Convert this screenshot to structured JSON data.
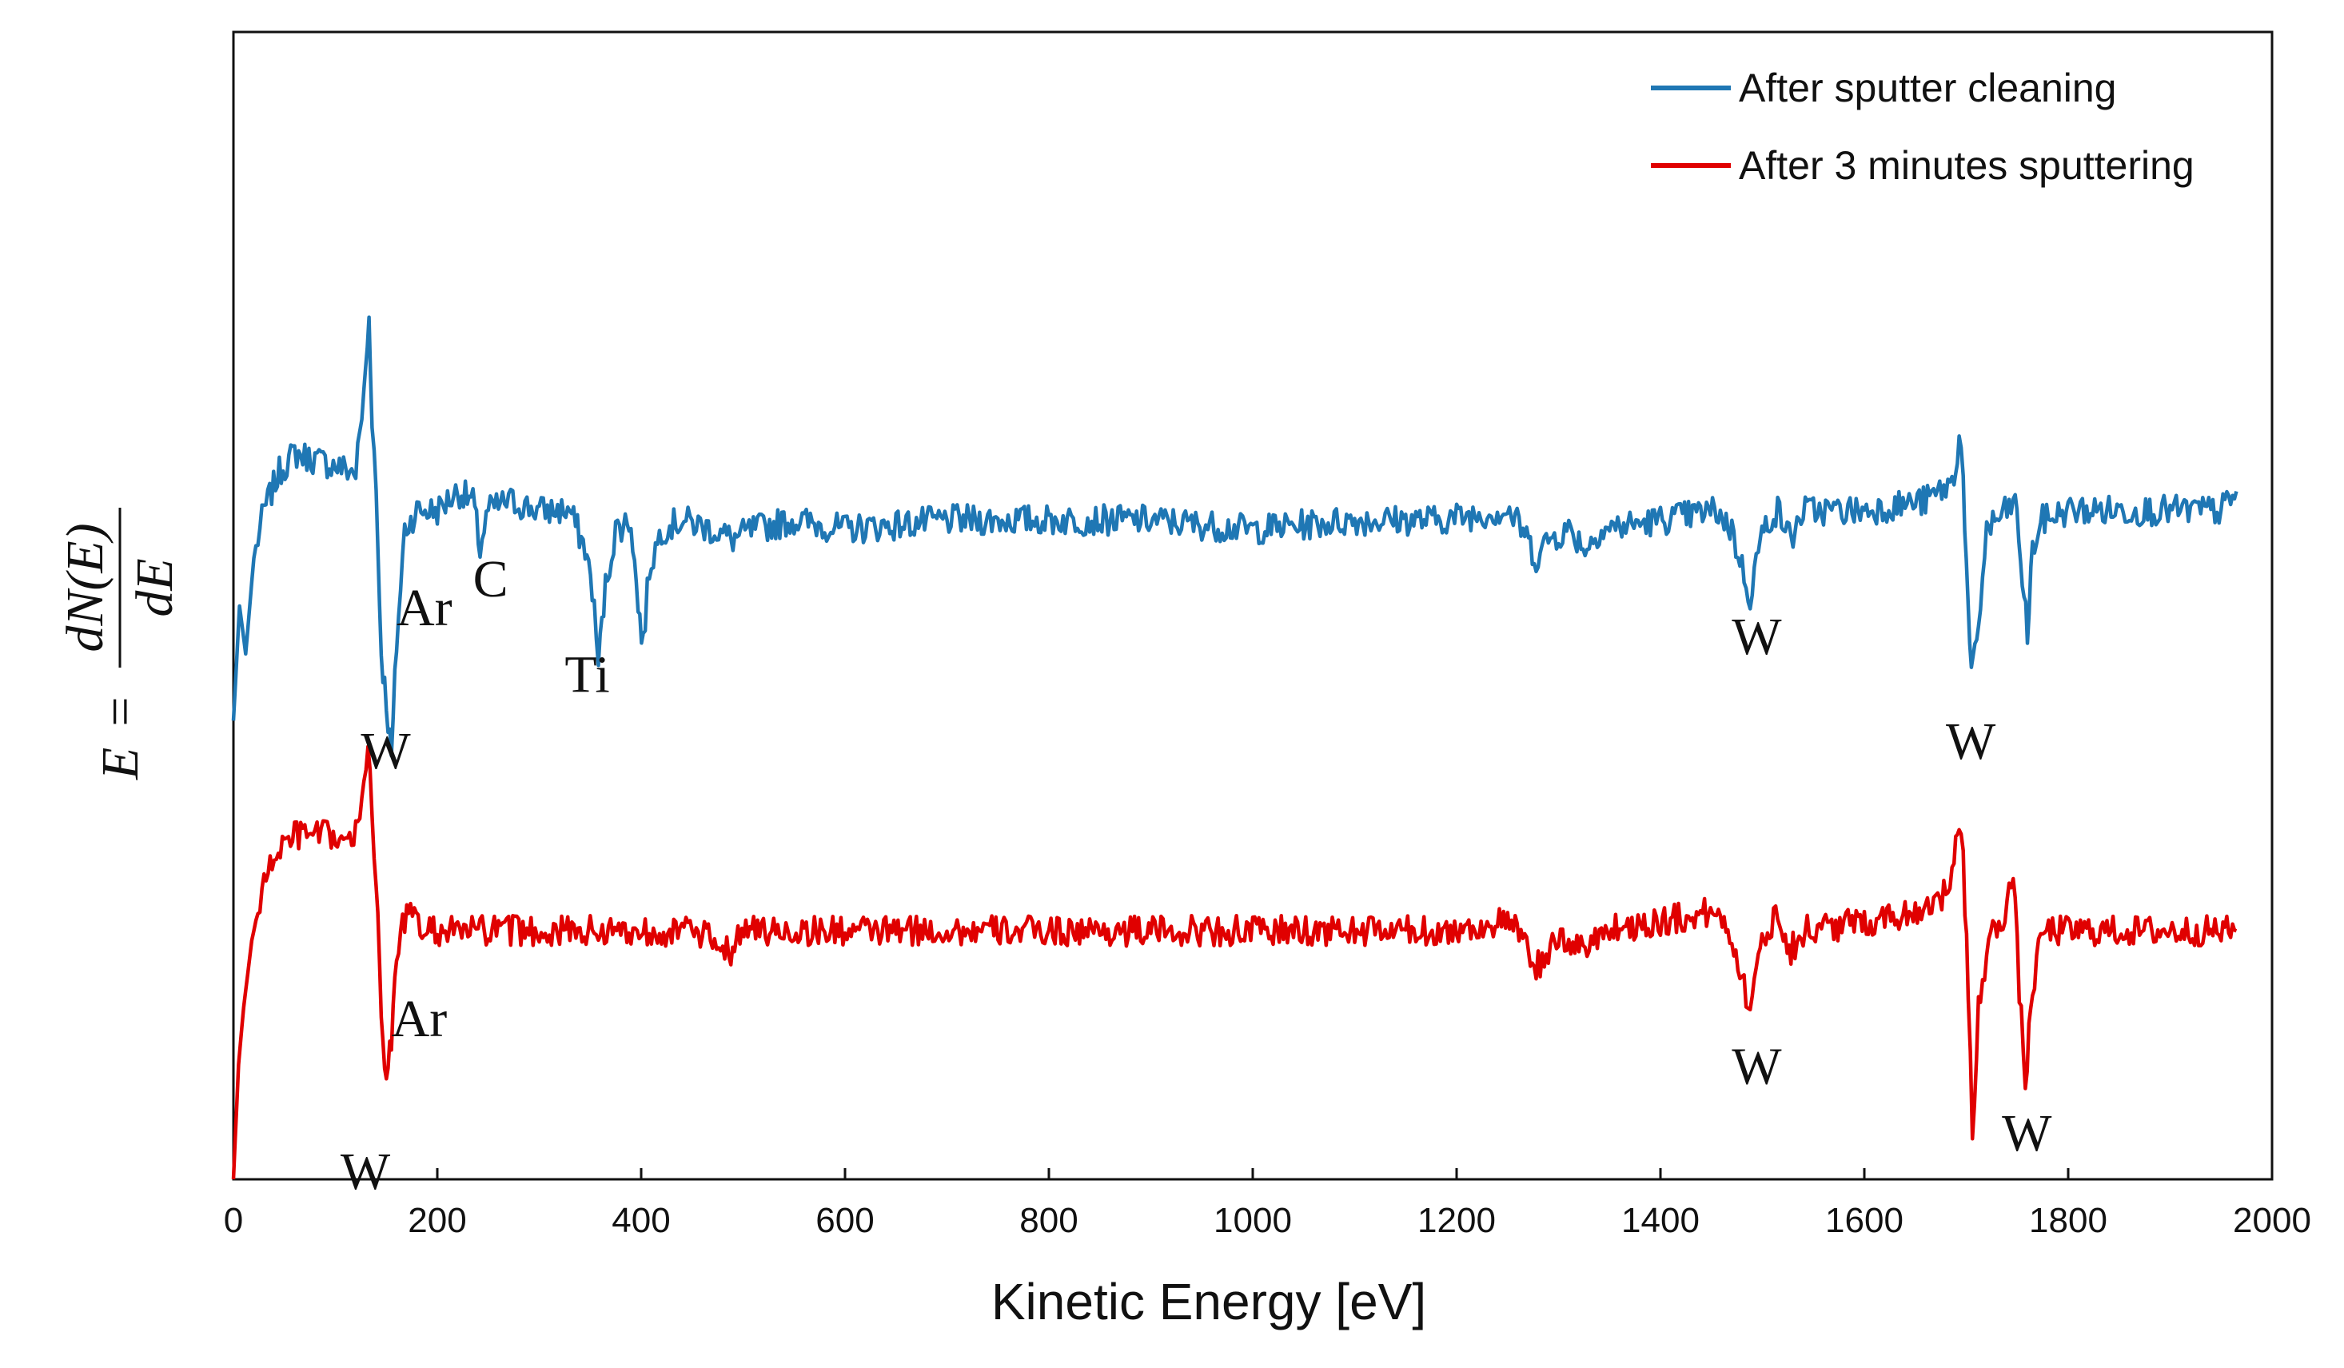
{
  "chart_data": {
    "type": "line",
    "title": "",
    "xlabel": "Kinetic Energy [eV]",
    "ylabel": {
      "lhs": "E",
      "equals": "=",
      "numerator": "dN(E)",
      "denominator": "dE"
    },
    "xlim": [
      0,
      2000
    ],
    "ylim": [
      0,
      100
    ],
    "x_ticks": [
      "0",
      "200",
      "400",
      "600",
      "800",
      "1000",
      "1200",
      "1400",
      "1600",
      "1800",
      "2000"
    ],
    "grid": false,
    "legend_position": "top-right",
    "colors": {
      "blue": "#1f77b4",
      "red": "#e00000"
    },
    "series": [
      {
        "name": "After sputter cleaning",
        "color": "#1f77b4",
        "points": [
          [
            0,
            48
          ],
          [
            6,
            60
          ],
          [
            12,
            55
          ],
          [
            20,
            65
          ],
          [
            30,
            70
          ],
          [
            45,
            74
          ],
          [
            60,
            76
          ],
          [
            90,
            75
          ],
          [
            120,
            74
          ],
          [
            128,
            82
          ],
          [
            133,
            90
          ],
          [
            136,
            80
          ],
          [
            140,
            72
          ],
          [
            145,
            55
          ],
          [
            150,
            50
          ],
          [
            155,
            44
          ],
          [
            160,
            56
          ],
          [
            168,
            68
          ],
          [
            180,
            70
          ],
          [
            200,
            70
          ],
          [
            220,
            72
          ],
          [
            235,
            71
          ],
          [
            242,
            66
          ],
          [
            250,
            70
          ],
          [
            270,
            71
          ],
          [
            300,
            70
          ],
          [
            330,
            70
          ],
          [
            345,
            66
          ],
          [
            352,
            62
          ],
          [
            358,
            54
          ],
          [
            365,
            62
          ],
          [
            375,
            68
          ],
          [
            390,
            69
          ],
          [
            397,
            60
          ],
          [
            402,
            56
          ],
          [
            408,
            64
          ],
          [
            420,
            68
          ],
          [
            440,
            69
          ],
          [
            470,
            68
          ],
          [
            490,
            67
          ],
          [
            510,
            68
          ],
          [
            550,
            69
          ],
          [
            600,
            68
          ],
          [
            700,
            69
          ],
          [
            800,
            69
          ],
          [
            900,
            69
          ],
          [
            1000,
            68
          ],
          [
            1100,
            69
          ],
          [
            1180,
            69
          ],
          [
            1250,
            70
          ],
          [
            1265,
            68
          ],
          [
            1278,
            65
          ],
          [
            1290,
            67
          ],
          [
            1310,
            68
          ],
          [
            1328,
            66
          ],
          [
            1340,
            68
          ],
          [
            1400,
            69
          ],
          [
            1455,
            70
          ],
          [
            1470,
            68
          ],
          [
            1480,
            64
          ],
          [
            1488,
            61
          ],
          [
            1496,
            66
          ],
          [
            1505,
            69
          ],
          [
            1515,
            70
          ],
          [
            1528,
            67
          ],
          [
            1540,
            70
          ],
          [
            1600,
            70
          ],
          [
            1660,
            71
          ],
          [
            1688,
            73
          ],
          [
            1693,
            78
          ],
          [
            1697,
            74
          ],
          [
            1700,
            64
          ],
          [
            1705,
            52
          ],
          [
            1712,
            58
          ],
          [
            1720,
            68
          ],
          [
            1740,
            70
          ],
          [
            1748,
            71
          ],
          [
            1755,
            63
          ],
          [
            1760,
            57
          ],
          [
            1765,
            66
          ],
          [
            1775,
            69
          ],
          [
            1800,
            70
          ],
          [
            1850,
            70
          ],
          [
            1900,
            70
          ],
          [
            1950,
            70
          ],
          [
            1965,
            72
          ]
        ]
      },
      {
        "name": "After 3 minutes sputtering",
        "color": "#e00000",
        "points": [
          [
            0,
            0
          ],
          [
            5,
            12
          ],
          [
            10,
            18
          ],
          [
            18,
            25
          ],
          [
            28,
            30
          ],
          [
            40,
            34
          ],
          [
            60,
            36
          ],
          [
            90,
            36
          ],
          [
            118,
            35
          ],
          [
            126,
            40
          ],
          [
            132,
            46
          ],
          [
            136,
            39
          ],
          [
            140,
            31
          ],
          [
            145,
            17
          ],
          [
            150,
            10
          ],
          [
            155,
            15
          ],
          [
            160,
            24
          ],
          [
            170,
            28
          ],
          [
            185,
            26
          ],
          [
            200,
            26
          ],
          [
            240,
            26
          ],
          [
            300,
            26
          ],
          [
            400,
            26
          ],
          [
            450,
            26
          ],
          [
            488,
            24
          ],
          [
            495,
            26
          ],
          [
            520,
            26
          ],
          [
            600,
            26
          ],
          [
            700,
            26
          ],
          [
            800,
            26
          ],
          [
            900,
            26
          ],
          [
            1000,
            26
          ],
          [
            1100,
            26
          ],
          [
            1200,
            26
          ],
          [
            1250,
            27
          ],
          [
            1265,
            25
          ],
          [
            1278,
            22
          ],
          [
            1290,
            24
          ],
          [
            1310,
            25
          ],
          [
            1328,
            24
          ],
          [
            1340,
            26
          ],
          [
            1400,
            27
          ],
          [
            1455,
            28
          ],
          [
            1468,
            26
          ],
          [
            1478,
            22
          ],
          [
            1488,
            18
          ],
          [
            1496,
            23
          ],
          [
            1505,
            26
          ],
          [
            1515,
            28
          ],
          [
            1528,
            24
          ],
          [
            1540,
            26
          ],
          [
            1600,
            27
          ],
          [
            1650,
            28
          ],
          [
            1680,
            30
          ],
          [
            1688,
            33
          ],
          [
            1693,
            37
          ],
          [
            1697,
            33
          ],
          [
            1702,
            20
          ],
          [
            1706,
            4
          ],
          [
            1712,
            18
          ],
          [
            1722,
            25
          ],
          [
            1738,
            28
          ],
          [
            1746,
            32
          ],
          [
            1752,
            20
          ],
          [
            1758,
            10
          ],
          [
            1765,
            20
          ],
          [
            1775,
            26
          ],
          [
            1800,
            26
          ],
          [
            1850,
            26
          ],
          [
            1900,
            26
          ],
          [
            1950,
            26
          ],
          [
            1965,
            26
          ]
        ]
      }
    ],
    "annotations": [
      {
        "text": "Ar",
        "x": 160,
        "y": 58
      },
      {
        "text": "C",
        "x": 235,
        "y": 61
      },
      {
        "text": "Ti",
        "x": 325,
        "y": 51
      },
      {
        "text": "W",
        "x": 125,
        "y": 43
      },
      {
        "text": "W",
        "x": 1470,
        "y": 55
      },
      {
        "text": "W",
        "x": 1680,
        "y": 44
      },
      {
        "text": "Ar",
        "x": 155,
        "y": 15
      },
      {
        "text": "W",
        "x": 105,
        "y": -1
      },
      {
        "text": "W",
        "x": 1470,
        "y": 10
      },
      {
        "text": "W",
        "x": 1735,
        "y": 3
      }
    ]
  }
}
